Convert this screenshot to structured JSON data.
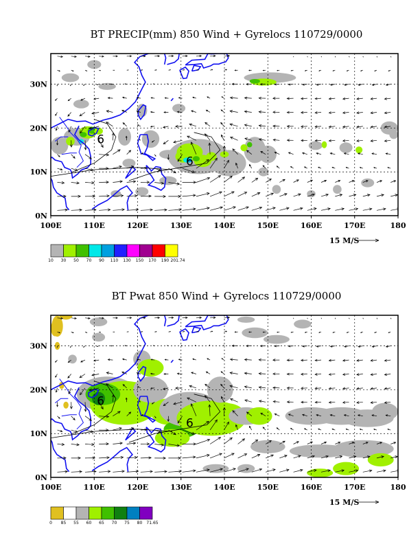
{
  "panels": [
    {
      "title": "BT PRECIP(mm) 850 Wind + Gyrelocs 110729/0000",
      "lon_labels": [
        "100E",
        "110E",
        "120E",
        "130E",
        "140E",
        "150E",
        "160E",
        "170E",
        "180"
      ],
      "lat_labels": [
        "0N",
        "10N",
        "20N",
        "30N"
      ],
      "ref_vector": "15 M/S",
      "colorbar_colors": [
        "#b4b4b4",
        "#a0f000",
        "#40c000",
        "#00e8e8",
        "#00a0e0",
        "#2020ff",
        "#ff00ff",
        "#a00090",
        "#ff0000",
        "#ffff00"
      ],
      "colorbar_labels": [
        "10",
        "30",
        "50",
        "70",
        "90",
        "110",
        "130",
        "150",
        "170",
        "190",
        "201.74"
      ],
      "gyre_marker": "6",
      "gyre_locations": [
        [
          111.5,
          17.5
        ],
        [
          132,
          12.5
        ]
      ]
    },
    {
      "title": "BT Pwat 850 Wind + Gyrelocs 110729/0000",
      "lon_labels": [
        "100E",
        "110E",
        "120E",
        "130E",
        "140E",
        "150E",
        "160E",
        "170E",
        "180"
      ],
      "lat_labels": [
        "0N",
        "10N",
        "20N",
        "30N"
      ],
      "ref_vector": "15 M/S",
      "colorbar_colors": [
        "#e0c020",
        "#ffffff",
        "#b4b4b4",
        "#a0f000",
        "#40c000",
        "#108010",
        "#0080c0",
        "#8000c0"
      ],
      "colorbar_labels": [
        "0",
        "85",
        "55",
        "60",
        "65",
        "70",
        "75",
        "80",
        "71.65"
      ],
      "gyre_marker": "6",
      "gyre_locations": [
        [
          111.5,
          17.5
        ],
        [
          132,
          12.5
        ]
      ]
    }
  ]
}
